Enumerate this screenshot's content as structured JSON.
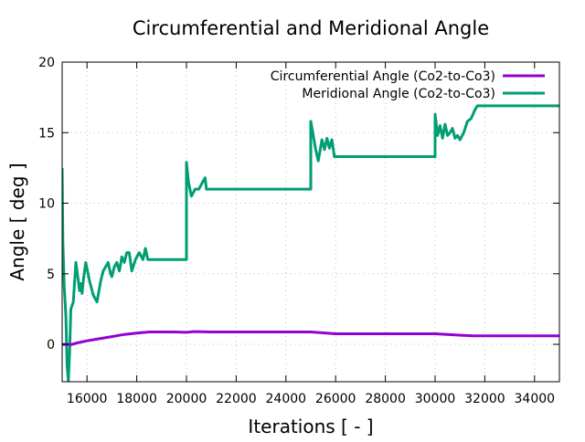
{
  "chart_data": {
    "type": "line",
    "title": "Circumferential and Meridional Angle",
    "xlabel": "Iterations [ - ]",
    "ylabel": "Angle [ deg ]",
    "xlim": [
      15000,
      35000
    ],
    "ylim": [
      -2.65,
      20
    ],
    "grid": true,
    "legend_position": "top-right",
    "xticks": [
      16000,
      18000,
      20000,
      22000,
      24000,
      26000,
      28000,
      30000,
      32000,
      34000
    ],
    "xtick_labels": [
      "16000",
      "18000",
      "20000",
      "22000",
      "24000",
      "26000",
      "28000",
      "30000",
      "32000",
      "34000"
    ],
    "yticks": [
      0,
      5,
      10,
      15,
      20
    ],
    "ytick_labels": [
      "0",
      "5",
      "10",
      "15",
      "20"
    ],
    "series": [
      {
        "name": "Circumferential Angle (Co2-to-Co3)",
        "color": "#9400d3",
        "x": [
          15000,
          15400,
          15600,
          16000,
          16500,
          17000,
          17500,
          18000,
          18500,
          19500,
          20000,
          20300,
          21000,
          23000,
          25000,
          26000,
          28000,
          30000,
          30500,
          31500,
          33000,
          35000
        ],
        "y": [
          0.0,
          0.0,
          0.1,
          0.25,
          0.4,
          0.55,
          0.7,
          0.8,
          0.88,
          0.88,
          0.85,
          0.9,
          0.88,
          0.88,
          0.88,
          0.75,
          0.75,
          0.75,
          0.7,
          0.6,
          0.6,
          0.6
        ]
      },
      {
        "name": "Meridional Angle (Co2-to-Co3)",
        "color": "#009e73",
        "x": [
          15000,
          15030,
          15080,
          15150,
          15200,
          15250,
          15300,
          15350,
          15450,
          15550,
          15650,
          15700,
          15750,
          15800,
          15850,
          15950,
          16100,
          16250,
          16400,
          16550,
          16650,
          16750,
          16850,
          16950,
          17000,
          17100,
          17200,
          17300,
          17400,
          17500,
          17600,
          17700,
          17800,
          17950,
          18100,
          18250,
          18350,
          18450,
          20000,
          20000,
          20080,
          20200,
          20350,
          20500,
          20650,
          20750,
          20800,
          25000,
          25000,
          25080,
          25200,
          25300,
          25450,
          25550,
          25650,
          25750,
          25850,
          25950,
          26000,
          30000,
          30000,
          30100,
          30200,
          30300,
          30400,
          30500,
          30600,
          30700,
          30800,
          30900,
          31000,
          31150,
          31300,
          31450,
          31600,
          31700,
          35000
        ],
        "y": [
          12.5,
          7.2,
          4.2,
          2.0,
          -1.5,
          -2.6,
          -0.5,
          2.5,
          3.0,
          5.8,
          4.5,
          3.8,
          4.3,
          3.6,
          4.5,
          5.8,
          4.5,
          3.5,
          3.0,
          4.5,
          5.2,
          5.5,
          5.8,
          5.0,
          4.8,
          5.5,
          5.8,
          5.2,
          6.2,
          5.8,
          6.5,
          6.5,
          5.2,
          6.0,
          6.5,
          6.0,
          6.8,
          6.0,
          6.0,
          12.9,
          11.5,
          10.5,
          11.0,
          11.0,
          11.5,
          11.8,
          11.0,
          11.0,
          15.8,
          15.0,
          13.8,
          13.0,
          14.5,
          13.8,
          14.6,
          13.9,
          14.5,
          13.3,
          13.3,
          13.3,
          16.3,
          14.8,
          15.5,
          14.6,
          15.6,
          14.8,
          15.0,
          15.3,
          14.6,
          14.8,
          14.5,
          15.0,
          15.8,
          16.0,
          16.6,
          16.9,
          16.9
        ]
      }
    ]
  }
}
